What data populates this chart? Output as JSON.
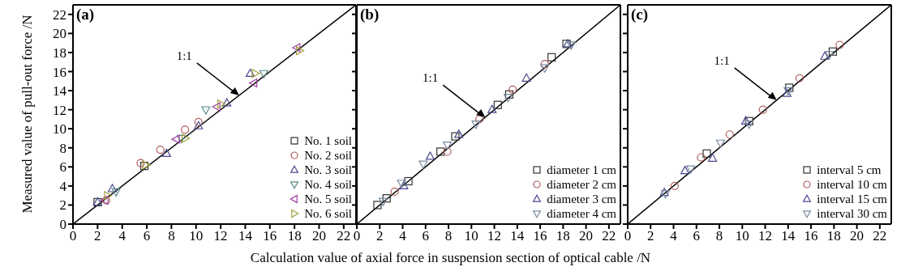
{
  "chart_data": [
    {
      "type": "scatter",
      "title": "(a)",
      "ylabel": "Measured value of pull-out force /N",
      "xlim": [
        0,
        23
      ],
      "ylim": [
        0,
        23
      ],
      "xticks": [
        0,
        2,
        4,
        6,
        8,
        10,
        12,
        14,
        16,
        18,
        20,
        22
      ],
      "yticks": [
        0,
        2,
        4,
        6,
        8,
        10,
        12,
        14,
        16,
        18,
        20,
        22
      ],
      "legend": "bottom right",
      "annotations": [
        {
          "text": "1:1",
          "x": 13.5,
          "y": 13.5
        }
      ],
      "series": [
        {
          "type": "line",
          "color": "#000000",
          "marker": "none",
          "x": [
            0,
            23
          ],
          "values": [
            0,
            23
          ]
        },
        {
          "name": "No. 1 soil",
          "color": "#333333",
          "marker": "square",
          "x": [
            2.0,
            5.8
          ],
          "values": [
            2.3,
            6.1
          ]
        },
        {
          "name": "No. 2 soil",
          "color": "#b05a5a",
          "marker": "circle",
          "x": [
            2.7,
            5.5,
            7.1,
            9.1,
            10.2
          ],
          "values": [
            2.5,
            6.4,
            7.8,
            9.9,
            10.7
          ]
        },
        {
          "name": "No. 3 soil",
          "color": "#4a4a8c",
          "marker": "triangle",
          "x": [
            2.0,
            3.2,
            7.6,
            10.2,
            12.5,
            14.4
          ],
          "values": [
            2.3,
            3.7,
            7.4,
            10.3,
            12.7,
            15.8
          ]
        },
        {
          "name": "No. 4 soil",
          "color": "#5a8c8c",
          "marker": "triangle-down",
          "x": [
            3.5,
            8.8,
            10.8,
            15.5
          ],
          "values": [
            3.4,
            9.0,
            12.0,
            15.8
          ]
        },
        {
          "name": "No. 5 soil",
          "color": "#a040a0",
          "marker": "triangle-left",
          "x": [
            2.6,
            8.4,
            11.7,
            14.7,
            18.2
          ],
          "values": [
            2.5,
            8.9,
            12.3,
            14.8,
            18.5
          ]
        },
        {
          "name": "No. 6 soil",
          "color": "#a0a040",
          "marker": "triangle-right",
          "x": [
            2.8,
            5.9,
            9.1,
            12.0,
            14.8,
            18.4
          ],
          "values": [
            3.0,
            6.2,
            9.0,
            12.6,
            15.8,
            18.2
          ]
        }
      ]
    },
    {
      "type": "scatter",
      "title": "(b)",
      "xlabel": "Calculation value of axial force in suspension section of optical cable /N",
      "xlim": [
        0,
        23
      ],
      "ylim": [
        0,
        23
      ],
      "xticks": [
        0,
        2,
        4,
        6,
        8,
        10,
        12,
        14,
        16,
        18,
        20,
        22
      ],
      "yticks": [
        0,
        2,
        4,
        6,
        8,
        10,
        12,
        14,
        16,
        18,
        20,
        22
      ],
      "tick_labels": "x",
      "legend": "bottom right",
      "annotations": [
        {
          "text": "1:1",
          "x": 11.2,
          "y": 11.2
        }
      ],
      "series": [
        {
          "type": "line",
          "color": "#000000",
          "marker": "none",
          "x": [
            0,
            23
          ],
          "values": [
            0,
            23
          ]
        },
        {
          "name": "diameter 1 cm",
          "color": "#333333",
          "marker": "square",
          "x": [
            1.8,
            2.6,
            4.5,
            7.3,
            8.6,
            12.3,
            13.3,
            17.0,
            18.3
          ],
          "values": [
            2.0,
            2.7,
            4.5,
            7.6,
            9.2,
            12.5,
            13.6,
            17.5,
            18.9
          ]
        },
        {
          "name": "diameter 2 cm",
          "color": "#b05a5a",
          "marker": "circle",
          "x": [
            3.3,
            7.9,
            10.7,
            13.6,
            16.4
          ],
          "values": [
            3.4,
            7.6,
            11.0,
            14.1,
            16.8
          ]
        },
        {
          "name": "diameter 3 cm",
          "color": "#4a4a8c",
          "marker": "triangle",
          "x": [
            4.1,
            6.4,
            8.9,
            11.8,
            14.8,
            18.4
          ],
          "values": [
            4.0,
            7.1,
            9.4,
            12.0,
            15.3,
            18.9
          ]
        },
        {
          "name": "diameter 4 cm",
          "color": "#7a8aa0",
          "marker": "triangle-down",
          "x": [
            2.3,
            3.9,
            5.8,
            7.9,
            10.4,
            13.2,
            16.4,
            18.7
          ],
          "values": [
            2.4,
            4.3,
            6.3,
            8.3,
            10.5,
            13.3,
            16.4,
            18.8
          ]
        }
      ]
    },
    {
      "type": "scatter",
      "title": "(c)",
      "xlim": [
        0,
        23
      ],
      "ylim": [
        0,
        23
      ],
      "xticks": [
        0,
        2,
        4,
        6,
        8,
        10,
        12,
        14,
        16,
        18,
        20,
        22
      ],
      "yticks": [
        0,
        2,
        4,
        6,
        8,
        10,
        12,
        14,
        16,
        18,
        20,
        22
      ],
      "tick_labels": "x",
      "legend": "bottom right",
      "annotations": [
        {
          "text": "1:1",
          "x": 13.0,
          "y": 13.0
        }
      ],
      "series": [
        {
          "type": "line",
          "color": "#000000",
          "marker": "none",
          "x": [
            0,
            23
          ],
          "values": [
            0,
            23
          ]
        },
        {
          "name": "interval 5 cm",
          "color": "#333333",
          "marker": "square",
          "x": [
            6.9,
            10.6,
            14.1,
            17.9
          ],
          "values": [
            7.4,
            10.8,
            14.3,
            18.1
          ]
        },
        {
          "name": "interval 10 cm",
          "color": "#b05a5a",
          "marker": "circle",
          "x": [
            4.1,
            6.4,
            8.9,
            11.8,
            15.0,
            18.5
          ],
          "values": [
            4.0,
            7.0,
            9.4,
            12.0,
            15.3,
            18.8
          ]
        },
        {
          "name": "interval 15 cm",
          "color": "#4a4a8c",
          "marker": "triangle",
          "x": [
            3.2,
            5.0,
            7.4,
            10.3,
            13.9,
            17.2
          ],
          "values": [
            3.3,
            5.6,
            6.9,
            10.8,
            13.7,
            17.6
          ]
        },
        {
          "name": "interval 30 cm",
          "color": "#7a8aa0",
          "marker": "triangle-down",
          "x": [
            3.3,
            5.5,
            8.1,
            10.6,
            14.0,
            17.6
          ],
          "values": [
            3.2,
            5.8,
            8.5,
            10.5,
            14.0,
            17.8
          ]
        }
      ]
    }
  ]
}
